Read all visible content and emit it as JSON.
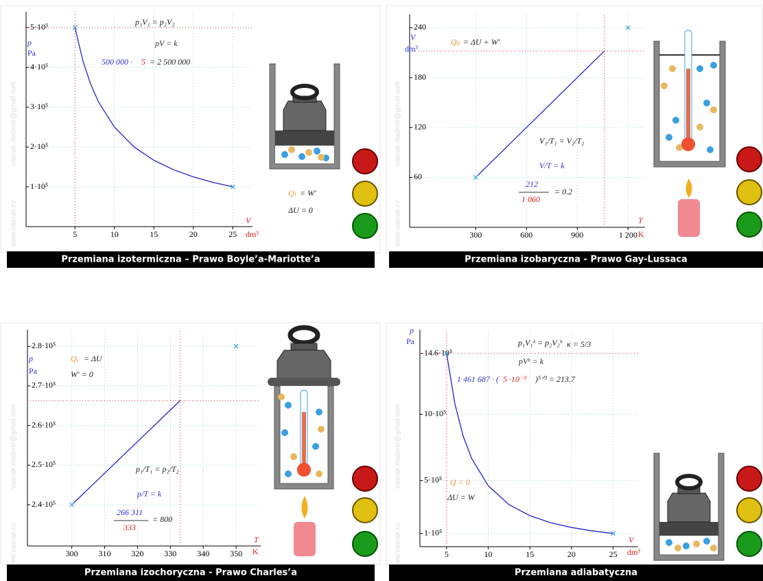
{
  "watermark": [
    "www.vascak.cz",
    "vascak.vladimir@gmail.com"
  ],
  "chart_data": [
    {
      "type": "line",
      "title": "Przemiana izotermiczna – Prawo Boyle’a-Mariotte’a",
      "color": "#2323c8",
      "grid": true,
      "x": [
        5,
        6,
        7,
        8,
        10,
        12.5,
        15,
        17.5,
        20,
        22.5,
        25
      ],
      "values": [
        500000,
        416667,
        357143,
        312500,
        250000,
        200000,
        166667,
        142857,
        125000,
        111111,
        100000
      ],
      "xlim": [
        -1.2,
        27.5
      ],
      "ylim": [
        0,
        540000
      ],
      "xticks": [
        5,
        10,
        15,
        20,
        25
      ],
      "yticks": [
        {
          "value": 100000,
          "label": "1·10⁵"
        },
        {
          "value": 200000,
          "label": "2·10⁵"
        },
        {
          "value": 300000,
          "label": "3·10⁵"
        },
        {
          "value": 400000,
          "label": "4·10⁵"
        },
        {
          "value": 500000,
          "label": "5·10⁵"
        }
      ],
      "x_label": "V",
      "x_unit": "dm³",
      "y_label": "p",
      "y_unit": "Pa",
      "guides": [
        {
          "x": 5,
          "y": 500000
        }
      ],
      "markers": [
        {
          "x": 5,
          "y": 500000
        },
        {
          "x": 25,
          "y": 100000
        }
      ],
      "annotations": [
        {
          "text": "p₁V₁ = p₂V₂",
          "color": "#222"
        },
        {
          "text": "pV = k",
          "color": "#333"
        },
        {
          "text": "500 000 ·",
          "color": "#3333cc"
        },
        {
          "text": "5",
          "color": "#e02020"
        },
        {
          "text": "= 2 500 000",
          "color": "#222"
        },
        {
          "text": "Qₜ",
          "color": "#e8962c"
        },
        {
          "text": "= W′",
          "color": "#222"
        },
        {
          "text": "ΔU = 0",
          "color": "#222"
        }
      ]
    },
    {
      "type": "line",
      "title": "Przemiana izobaryczna - Prawo Gay-Lussaca",
      "color": "#2323c8",
      "grid": true,
      "x": [
        300,
        1060
      ],
      "values": [
        60,
        212
      ],
      "xlim": [
        -90,
        1300
      ],
      "ylim": [
        0,
        256
      ],
      "xticks": [
        300,
        600,
        900,
        {
          "value": 1200,
          "label": "1 200"
        }
      ],
      "yticks": [
        60,
        120,
        180,
        240
      ],
      "x_label": "T",
      "x_unit": "K",
      "y_label": "V",
      "y_unit": "dm³",
      "guides": [
        {
          "x": 1060,
          "y": 212
        }
      ],
      "markers": [
        {
          "x": 300,
          "y": 60
        },
        {
          "x": 1200,
          "y": 240
        }
      ],
      "annotations": [
        {
          "text": "Qₚ",
          "color": "#e8962c"
        },
        {
          "text": "= ΔU + W′",
          "color": "#222"
        },
        {
          "text": "V₁/T₁ = V₂/T₂",
          "color": "#222"
        },
        {
          "text": "V/T = k",
          "color": "#3333cc"
        },
        {
          "text": "212",
          "color": "#3333cc"
        },
        {
          "text": "1 060",
          "color": "#e02020"
        },
        {
          "text": "= 0.2",
          "color": "#222"
        }
      ]
    },
    {
      "type": "line",
      "title": "Przemiana izochoryczna - Prawo Charles’a",
      "color": "#2323c8",
      "grid": true,
      "x": [
        300,
        333
      ],
      "values": [
        240000,
        266311
      ],
      "xlim": [
        286.5,
        357.5
      ],
      "ylim": [
        229600,
        284200
      ],
      "xticks": [
        300,
        310,
        320,
        330,
        340,
        350
      ],
      "yticks": [
        {
          "value": 240000,
          "label": "2.4·10⁵"
        },
        {
          "value": 250000,
          "label": "2.5·10⁵"
        },
        {
          "value": 260000,
          "label": "2.6·10⁵"
        },
        {
          "value": 270000,
          "label": "2.7·10⁵"
        },
        {
          "value": 280000,
          "label": "2.8·10⁵"
        }
      ],
      "x_label": "T",
      "x_unit": "K",
      "y_label": "p",
      "y_unit": "Pa",
      "guides": [
        {
          "x": 333,
          "y": 266311
        }
      ],
      "markers": [
        {
          "x": 300,
          "y": 240000
        },
        {
          "x": 350,
          "y": 280000
        }
      ],
      "annotations": [
        {
          "text": "Qᵥ",
          "color": "#e8962c"
        },
        {
          "text": "= ΔU",
          "color": "#222"
        },
        {
          "text": "W′ = 0",
          "color": "#222"
        },
        {
          "text": "p₁/T₁ = p₂/T₂",
          "color": "#222"
        },
        {
          "text": "p/T = k",
          "color": "#3333cc"
        },
        {
          "text": "266 311",
          "color": "#3333cc"
        },
        {
          "text": "333",
          "color": "#e02020"
        },
        {
          "text": "= 800",
          "color": "#222"
        }
      ]
    },
    {
      "type": "line",
      "title": "Przemiana adiabatyczna",
      "color": "#2323c8",
      "grid": true,
      "x": [
        5,
        6,
        7,
        8,
        10,
        12.5,
        15,
        17.5,
        20,
        22.5,
        25
      ],
      "values": [
        1461687,
        1078700,
        834300,
        667800,
        460400,
        317500,
        234200,
        181100,
        145000,
        119100,
        99980
      ],
      "xlim": [
        1.8,
        28
      ],
      "ylim": [
        0,
        1640000
      ],
      "xticks": [
        5,
        10,
        15,
        20,
        25
      ],
      "yticks": [
        {
          "value": 100000,
          "label": "1·10⁵"
        },
        {
          "value": 500000,
          "label": "5·10⁵"
        },
        {
          "value": 1000000,
          "label": "10·10⁵"
        },
        {
          "value": 1460000,
          "label": "14.6·10⁵"
        }
      ],
      "x_label": "V",
      "x_unit": "dm³",
      "y_label": "p",
      "y_unit": "Pa",
      "guides": [
        {
          "x": 5,
          "y": 1460000
        }
      ],
      "markers": [
        {
          "x": 5,
          "y": 1460000
        },
        {
          "x": 25,
          "y": 100000
        }
      ],
      "annotations": [
        {
          "text": "p₁V₁ᵏ = p₂V₂ᵏ",
          "color": "#222"
        },
        {
          "text": "κ = 5/3",
          "color": "#222"
        },
        {
          "text": "pVᵏ = k",
          "color": "#333"
        },
        {
          "text": "1 461 687 · (",
          "color": "#3333cc"
        },
        {
          "text": "5 ·10⁻³",
          "color": "#e02020"
        },
        {
          "text": ")⁵ᐟ³ = 213.7",
          "color": "#222"
        },
        {
          "text": "Q = 0",
          "color": "#e8962c"
        },
        {
          "text": "ΔU = W",
          "color": "#222"
        }
      ]
    }
  ]
}
